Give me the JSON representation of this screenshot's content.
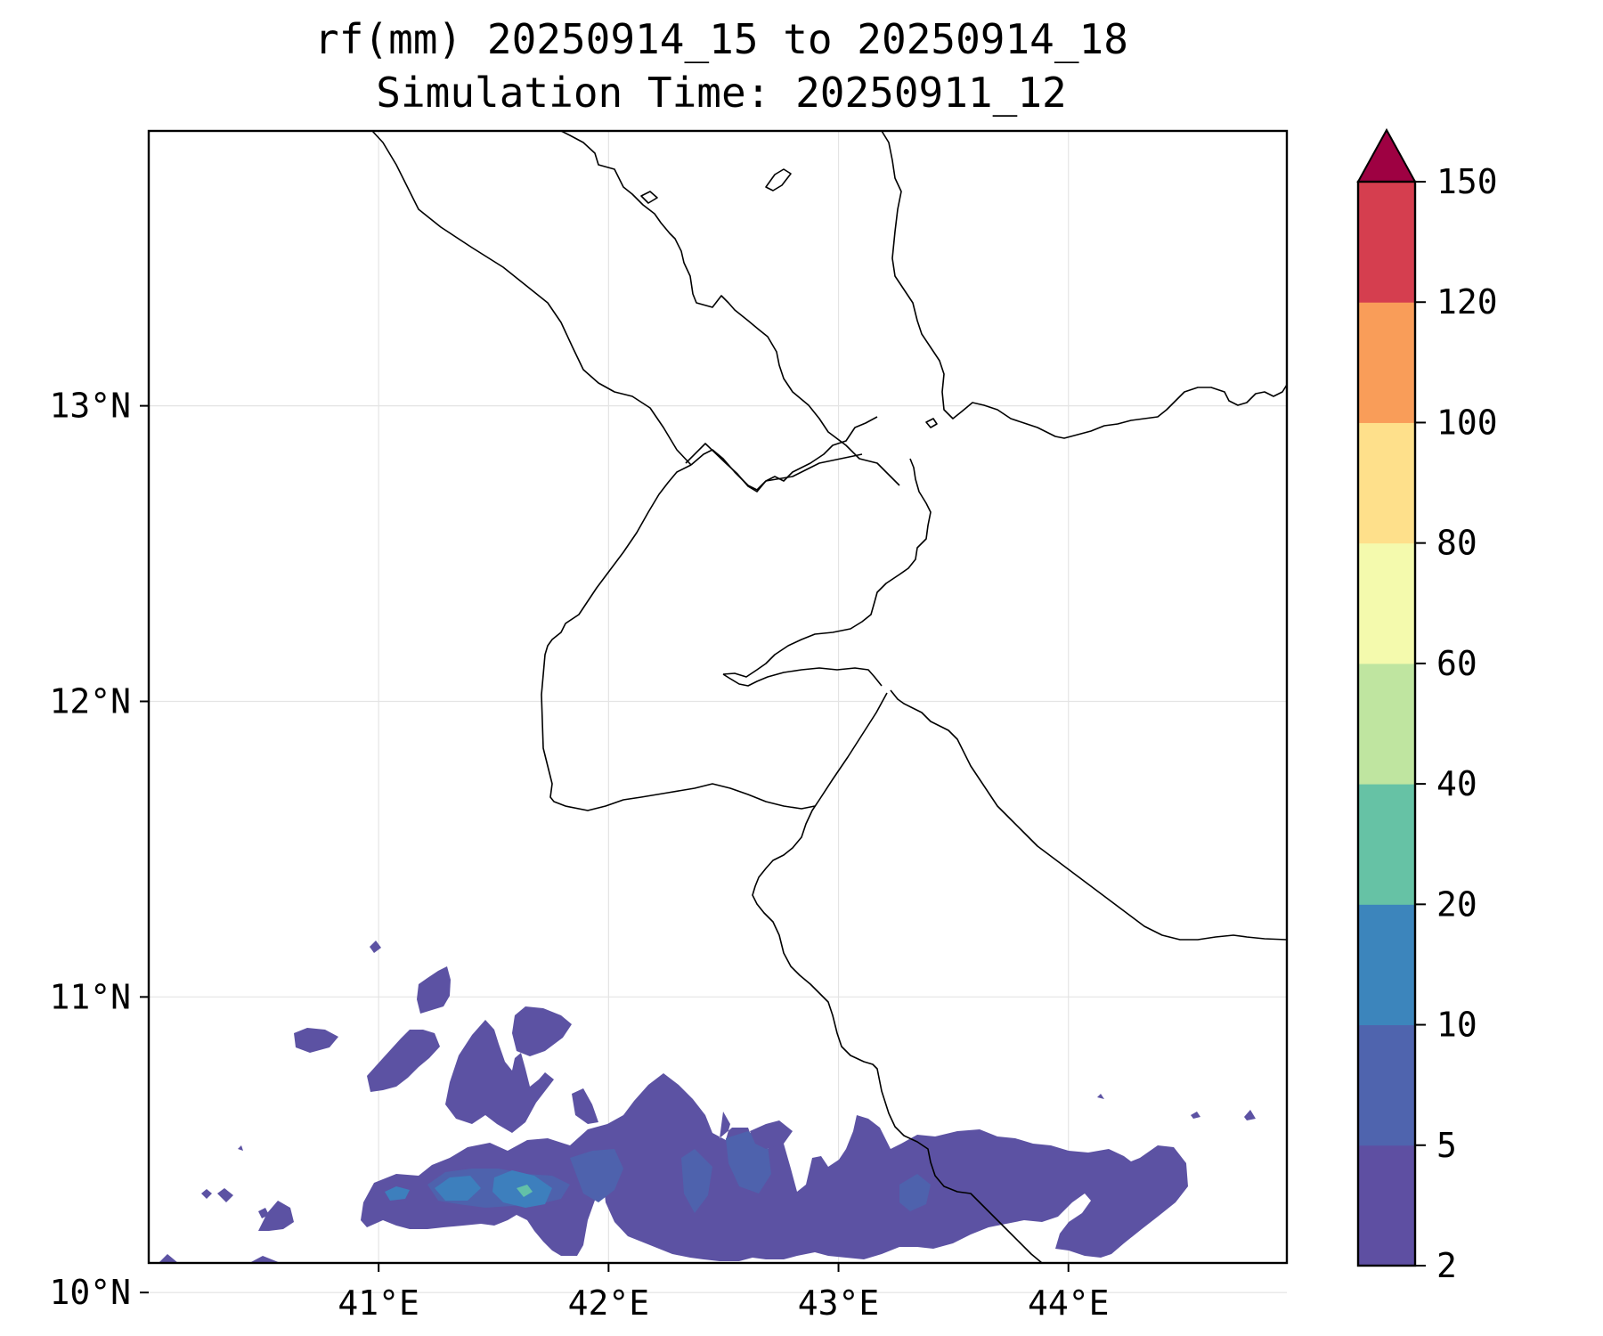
{
  "title": {
    "line1": "rf(mm) 20250914_15 to 20250914_18",
    "line2": "Simulation Time: 20250911_12"
  },
  "map": {
    "lon_range": [
      40.0,
      44.95
    ],
    "lat_range": [
      10.1,
      13.93
    ],
    "x_ticks": [
      {
        "value": 41,
        "label": "41°E"
      },
      {
        "value": 42,
        "label": "42°E"
      },
      {
        "value": 43,
        "label": "43°E"
      },
      {
        "value": 44,
        "label": "44°E"
      }
    ],
    "y_ticks": [
      {
        "value": 13,
        "label": "13°N"
      },
      {
        "value": 12,
        "label": "12°N"
      },
      {
        "value": 11,
        "label": "11°N"
      },
      {
        "value": 10,
        "label": "10°N"
      }
    ],
    "grid": true
  },
  "colorbar": {
    "extend": "max",
    "extend_color": "#9e0142",
    "levels": [
      {
        "value": 2,
        "label": "2"
      },
      {
        "value": 5,
        "label": "5"
      },
      {
        "value": 10,
        "label": "10"
      },
      {
        "value": 20,
        "label": "20"
      },
      {
        "value": 40,
        "label": "40"
      },
      {
        "value": 60,
        "label": "60"
      },
      {
        "value": 80,
        "label": "80"
      },
      {
        "value": 100,
        "label": "100"
      },
      {
        "value": 120,
        "label": "120"
      },
      {
        "value": 150,
        "label": "150"
      }
    ],
    "colors": [
      "#5e4fa2",
      "#4f64ae",
      "#3c85bc",
      "#66c2a5",
      "#bfe5a0",
      "#f4faad",
      "#fee08b",
      "#f99d59",
      "#d53e4f"
    ]
  }
}
